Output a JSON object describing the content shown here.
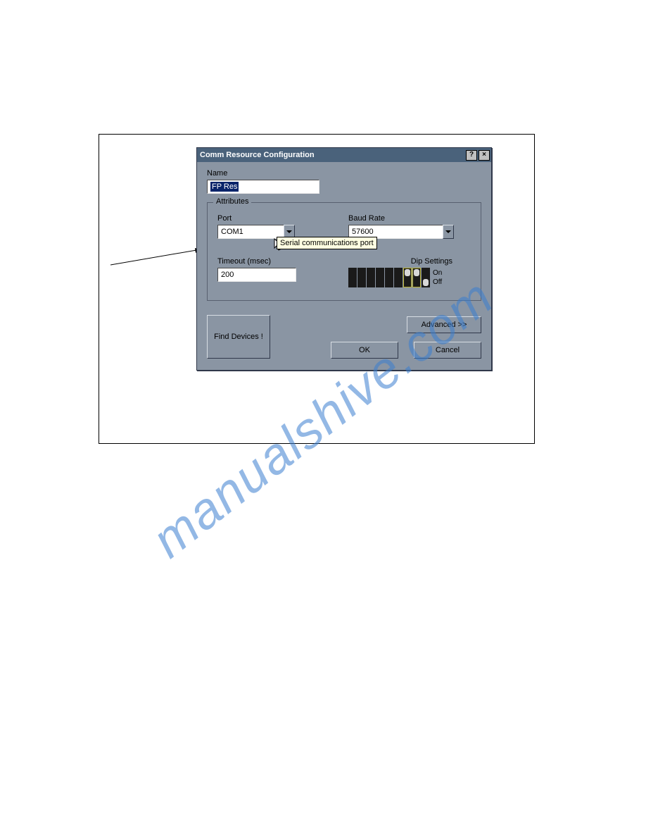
{
  "watermark": "manualshive.com",
  "dialog": {
    "title": "Comm Resource Configuration",
    "name_label": "Name",
    "name_value": "FP Res",
    "attributes_legend": "Attributes",
    "port_label": "Port",
    "port_value": "COM1",
    "baud_label": "Baud Rate",
    "baud_value": "57600",
    "tooltip": "Serial communications port",
    "timeout_label": "Timeout (msec)",
    "timeout_value": "200",
    "dip_label_suffix": "Dip Settings",
    "dip_on": "On",
    "dip_off": "Off",
    "dip_switches": [
      {
        "visible_knob": false,
        "highlight": false
      },
      {
        "visible_knob": false,
        "highlight": false
      },
      {
        "visible_knob": false,
        "highlight": false
      },
      {
        "visible_knob": false,
        "highlight": false
      },
      {
        "visible_knob": false,
        "highlight": false
      },
      {
        "visible_knob": false,
        "highlight": false
      },
      {
        "visible_knob": true,
        "position": "on",
        "highlight": true
      },
      {
        "visible_knob": true,
        "position": "on",
        "highlight": true
      },
      {
        "visible_knob": true,
        "position": "off",
        "highlight": false
      }
    ],
    "find_devices": "Find Devices !",
    "advanced": "Advanced  >>",
    "ok": "OK",
    "cancel": "Cancel"
  },
  "colors": {
    "dialog_bg": "#8a95a3",
    "titlebar_bg": "#4a627b",
    "titlebar_fg": "#ffffff",
    "input_bg": "#ffffff",
    "highlight_bg": "#0a246a",
    "highlight_fg": "#ffffff",
    "tooltip_bg": "#ffffe1",
    "switch_bg": "#1a1a1a",
    "knob_bg": "#d8d8d8",
    "switch_highlight": "#b8b030"
  }
}
